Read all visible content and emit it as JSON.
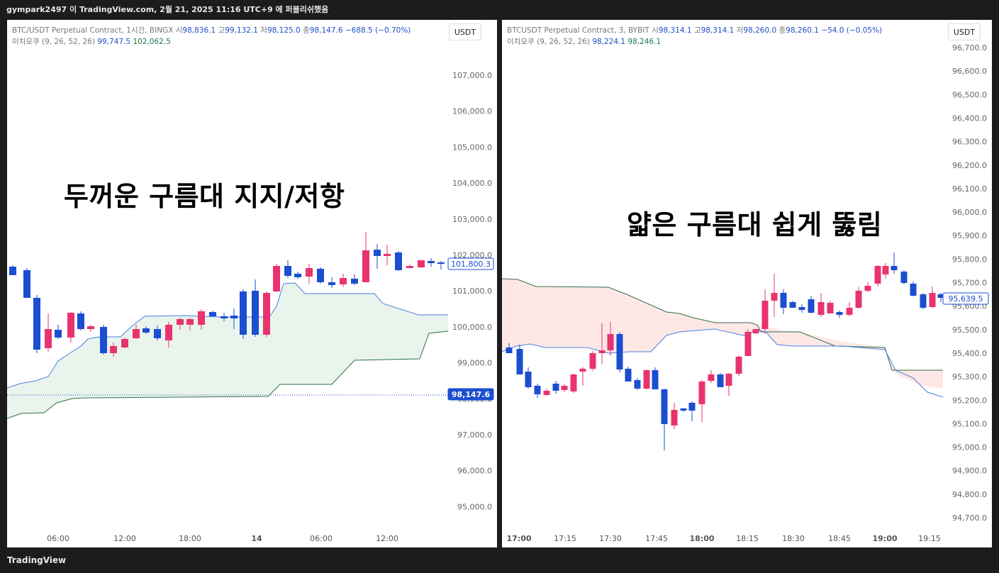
{
  "header": {
    "text": "gympark2497 이 TradingView.com, 2월 21, 2025 11:16 UTC+9 에 퍼블리쉬했음"
  },
  "footer": {
    "brand_icon": "tradingview-logo-icon",
    "brand_text": "TradingView"
  },
  "colors": {
    "up": "#e8336f",
    "down": "#1b4ed0",
    "cloud_green": "#e9f5ec",
    "cloud_red": "#fde8e6",
    "line_blue": "#4a7fe0",
    "line_green": "#2f6e4a"
  },
  "left_chart": {
    "legend": {
      "symbol": "BTC/USDT Perpetual Contract, 1시간, BINGX",
      "o_label": "시",
      "o": "98,836.1",
      "h_label": "고",
      "h": "99,132.1",
      "l_label": "저",
      "l": "98,125.0",
      "c_label": "종",
      "c": "98,147.6",
      "change": "−688.5 (−0.70%)",
      "ichimoku_label": "이치모쿠 (9, 26, 52, 26)",
      "ichimoku_v1": "99,747.5",
      "ichimoku_v2": "102,062.5"
    },
    "currency": "USDT",
    "overlay_text": "두꺼운 구름대 지지/저항",
    "price_ticks": [
      "107,000.0",
      "106,000.0",
      "105,000.0",
      "104,000.0",
      "103,000.0",
      "102,000.0",
      "101,000.0",
      "100,000.0",
      "99,000.0",
      "98,000.0",
      "97,000.0",
      "96,000.0",
      "95,000.0"
    ],
    "time_ticks": [
      "06:00",
      "12:00",
      "18:00",
      "14",
      "06:00",
      "12:00"
    ],
    "last_price_label": "98,147.6",
    "line_label": "101,800.3"
  },
  "right_chart": {
    "legend": {
      "symbol": "BTCUSDT Perpetual Contract, 3, BYBIT",
      "o_label": "시",
      "o": "98,314.1",
      "h_label": "고",
      "h": "98,314.1",
      "l_label": "저",
      "l": "98,260.0",
      "c_label": "종",
      "c": "98,260.1",
      "change": "−54.0 (−0.05%)",
      "ichimoku_label": "이치모쿠 (9, 26, 52, 26)",
      "ichimoku_v1": "98,224.1",
      "ichimoku_v2": "98,246.1"
    },
    "currency": "USDT",
    "overlay_text": "얇은 구름대 쉽게 뚫림",
    "price_ticks": [
      "96,700.0",
      "96,600.0",
      "96,500.0",
      "96,400.0",
      "96,300.0",
      "96,200.0",
      "96,100.0",
      "96,000.0",
      "95,900.0",
      "95,800.0",
      "95,700.0",
      "95,600.0",
      "95,500.0",
      "95,400.0",
      "95,300.0",
      "95,200.0",
      "95,100.0",
      "95,000.0",
      "94,900.0",
      "94,800.0",
      "94,700.0"
    ],
    "time_ticks": [
      "17:00",
      "17:15",
      "17:30",
      "17:45",
      "18:00",
      "18:15",
      "18:30",
      "18:45",
      "19:00",
      "19:15"
    ],
    "line_label": "95,639.5"
  }
}
